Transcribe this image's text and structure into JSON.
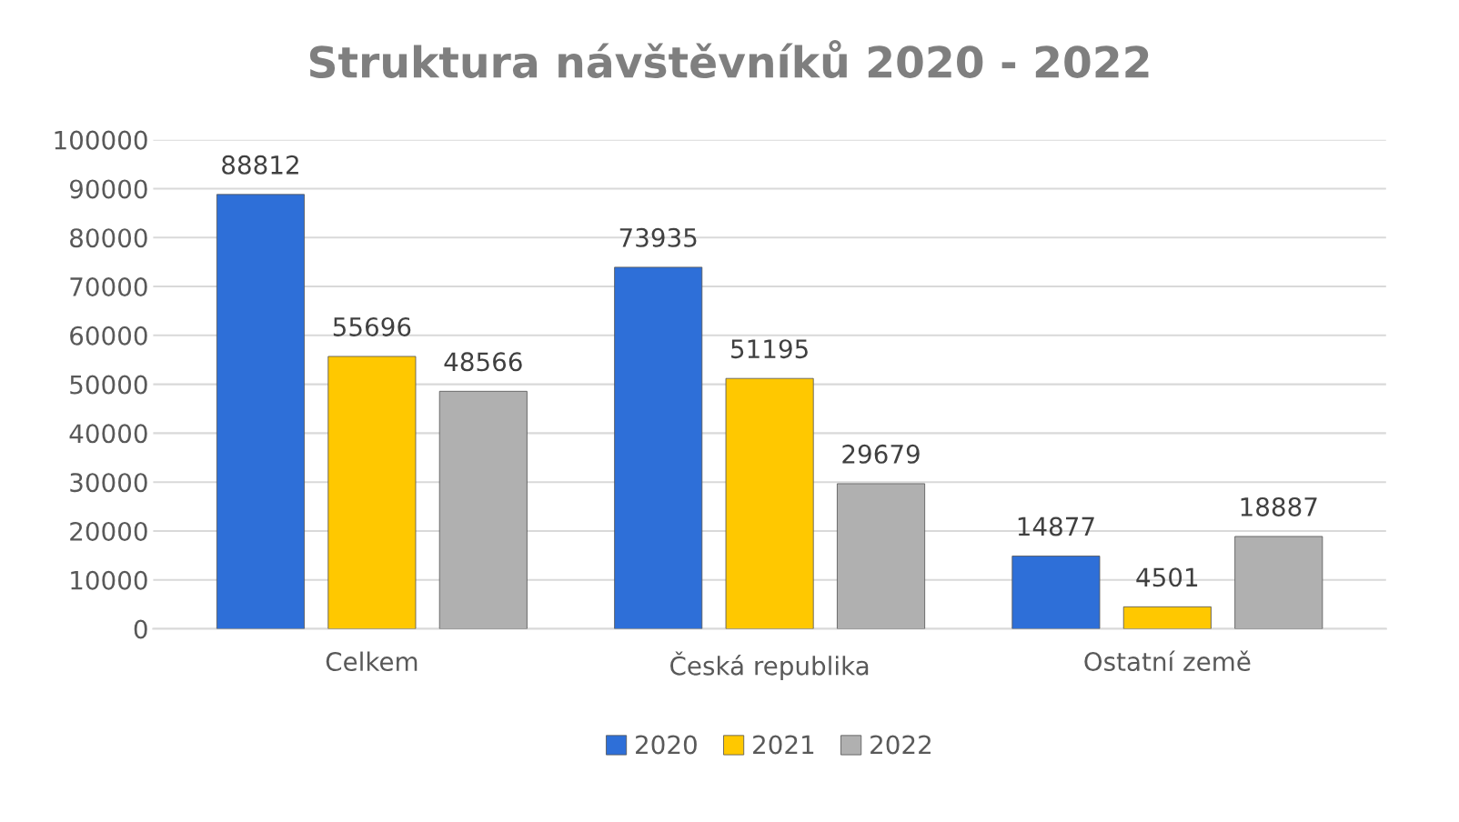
{
  "chart_data": {
    "type": "bar",
    "title": "Struktura návštěvníků 2020 - 2022",
    "categories": [
      "Celkem",
      "Česká republika",
      "Ostatní země"
    ],
    "series": [
      {
        "name": "2020",
        "color": "#2e6fd8",
        "values": [
          88812,
          73935,
          14877
        ]
      },
      {
        "name": "2021",
        "color": "#ffc800",
        "values": [
          55696,
          51195,
          4501
        ]
      },
      {
        "name": "2022",
        "color": "#b0b0b0",
        "values": [
          48566,
          29679,
          18887
        ]
      }
    ],
    "ylim": [
      0,
      100000
    ],
    "yticks": [
      0,
      10000,
      20000,
      30000,
      40000,
      50000,
      60000,
      70000,
      80000,
      90000,
      100000
    ],
    "grid": "y",
    "legend": "bottom",
    "data_labels": true
  }
}
